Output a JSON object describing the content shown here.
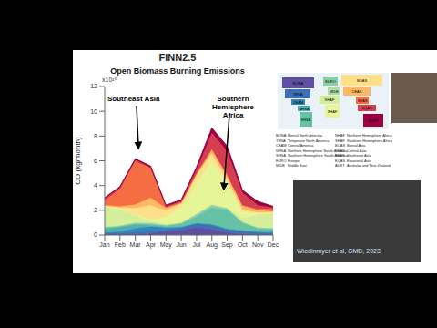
{
  "chart_data": {
    "type": "area",
    "stacked": true,
    "title": "FINN2.5",
    "subtitle": "Open Biomass Burning Emissions",
    "y_label": "CO (kg/month)",
    "y_unit": "x10¹⁰",
    "citation": "Wiedinmyer et al, GMD, 2023",
    "annotations": [
      "Southeast Asia",
      "Southern Hemisphere Africa"
    ],
    "categories": [
      "Jan",
      "Feb",
      "Mar",
      "Apr",
      "May",
      "Jun",
      "Jul",
      "Aug",
      "Sep",
      "Oct",
      "Nov",
      "Dec"
    ],
    "ylim": [
      0,
      12
    ],
    "yticks": [
      0,
      2,
      4,
      6,
      8,
      10,
      12
    ],
    "grid": false,
    "series": [
      {
        "name": "BONA",
        "label": "Boreal North America",
        "color": "#5e4fa2",
        "values": [
          0.05,
          0.05,
          0.1,
          0.15,
          0.3,
          0.4,
          0.6,
          0.5,
          0.2,
          0.1,
          0.05,
          0.05
        ]
      },
      {
        "name": "TENA",
        "label": "Temperate North America",
        "color": "#3f6fb5",
        "values": [
          0.1,
          0.1,
          0.15,
          0.15,
          0.15,
          0.2,
          0.3,
          0.3,
          0.25,
          0.2,
          0.15,
          0.1
        ]
      },
      {
        "name": "CEAM",
        "label": "Central America",
        "color": "#3288bd",
        "values": [
          0.05,
          0.15,
          0.3,
          0.4,
          0.15,
          0.05,
          0.05,
          0.05,
          0.05,
          0.05,
          0.05,
          0.05
        ]
      },
      {
        "name": "NHSA",
        "label": "Northern Hemisphere South America",
        "color": "#4fb0b0",
        "values": [
          0.3,
          0.35,
          0.3,
          0.1,
          0.05,
          0.05,
          0.05,
          0.05,
          0.05,
          0.05,
          0.1,
          0.2
        ]
      },
      {
        "name": "SHSA",
        "label": "Southern Hemisphere South America",
        "color": "#66c2a5",
        "values": [
          0.1,
          0.05,
          0.05,
          0.05,
          0.1,
          0.2,
          0.5,
          1.3,
          1.5,
          0.6,
          0.2,
          0.1
        ]
      },
      {
        "name": "EURO",
        "label": "Europe",
        "color": "#88cfa4",
        "values": [
          0.05,
          0.05,
          0.1,
          0.1,
          0.05,
          0.05,
          0.15,
          0.2,
          0.1,
          0.05,
          0.05,
          0.05
        ]
      },
      {
        "name": "MIDE",
        "label": "Middle East",
        "color": "#abdda4",
        "values": [
          0.02,
          0.02,
          0.02,
          0.02,
          0.02,
          0.05,
          0.05,
          0.05,
          0.03,
          0.02,
          0.02,
          0.02
        ]
      },
      {
        "name": "NHAF",
        "label": "Northern Hemisphere Africa",
        "color": "#d5ee9b",
        "values": [
          1.6,
          1.3,
          0.6,
          0.15,
          0.05,
          0.05,
          0.05,
          0.05,
          0.05,
          0.3,
          1.0,
          1.2
        ]
      },
      {
        "name": "SHAF",
        "label": "Southern Hemisphere Africa",
        "color": "#e6f598",
        "values": [
          0.05,
          0.05,
          0.05,
          0.1,
          0.6,
          1.2,
          2.5,
          3.5,
          2.0,
          0.5,
          0.1,
          0.05
        ]
      },
      {
        "name": "BOAS",
        "label": "Boreal Asia",
        "color": "#fee08b",
        "values": [
          0.05,
          0.1,
          0.5,
          1.2,
          0.5,
          0.3,
          0.6,
          0.6,
          0.3,
          0.2,
          0.1,
          0.05
        ]
      },
      {
        "name": "CEAS",
        "label": "Central Asia",
        "color": "#fdb863",
        "values": [
          0.05,
          0.1,
          0.3,
          0.6,
          0.2,
          0.05,
          0.1,
          0.3,
          0.3,
          0.3,
          0.2,
          0.05
        ]
      },
      {
        "name": "SEAS",
        "label": "Southeast Asia",
        "color": "#f46d43",
        "values": [
          0.4,
          1.4,
          3.5,
          2.4,
          0.1,
          0.05,
          0.05,
          0.05,
          0.05,
          0.05,
          0.1,
          0.2
        ]
      },
      {
        "name": "EQAS",
        "label": "Equatorial Asia",
        "color": "#d53e4f",
        "values": [
          0.1,
          0.1,
          0.1,
          0.05,
          0.05,
          0.1,
          0.3,
          1.3,
          1.9,
          1.0,
          0.3,
          0.1
        ]
      },
      {
        "name": "AUST",
        "label": "Australia and New Zealand",
        "color": "#9e0142",
        "values": [
          0.1,
          0.1,
          0.1,
          0.1,
          0.1,
          0.1,
          0.2,
          0.4,
          0.4,
          0.2,
          0.3,
          0.1
        ]
      }
    ]
  }
}
